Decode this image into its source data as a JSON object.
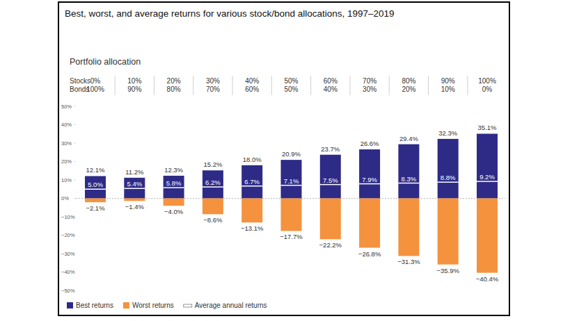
{
  "chart_data": {
    "type": "bar",
    "title": "Best, worst, and average returns for various stock/bond allocations, 1997–2019",
    "allocation": {
      "title": "Portfolio allocation",
      "row_labels": [
        "Stocks",
        "Bonds"
      ],
      "stocks": [
        "0%",
        "10%",
        "20%",
        "30%",
        "40%",
        "50%",
        "60%",
        "70%",
        "80%",
        "90%",
        "100%"
      ],
      "bonds": [
        "100%",
        "90%",
        "80%",
        "70%",
        "60%",
        "50%",
        "40%",
        "30%",
        "20%",
        "10%",
        "0%"
      ]
    },
    "series": [
      {
        "name": "Best returns",
        "color": "#2e2b87",
        "values": [
          12.1,
          11.2,
          12.3,
          15.2,
          18.0,
          20.9,
          23.7,
          26.6,
          29.4,
          32.3,
          35.1
        ],
        "value_labels": [
          "12.1%",
          "11.2%",
          "12.3%",
          "15.2%",
          "18.0%",
          "20.9%",
          "23.7%",
          "26.6%",
          "29.4%",
          "32.3%",
          "35.1%"
        ]
      },
      {
        "name": "Worst returns",
        "color": "#f5923e",
        "values": [
          -2.1,
          -1.4,
          -4.0,
          -8.6,
          -13.1,
          -17.7,
          -22.2,
          -26.8,
          -31.3,
          -35.9,
          -40.4
        ],
        "value_labels": [
          "−2.1%",
          "−1.4%",
          "−4.0%",
          "−8.6%",
          "−13.1%",
          "−17.7%",
          "−22.2%",
          "−26.8%",
          "−31.3%",
          "−35.9%",
          "−40.4%"
        ]
      },
      {
        "name": "Average annual returns",
        "color": "#ffffff",
        "marker": "dash",
        "values": [
          5.0,
          5.4,
          5.8,
          6.2,
          6.7,
          7.1,
          7.5,
          7.9,
          8.3,
          8.8,
          9.2
        ],
        "value_labels": [
          "5.0%",
          "5.4%",
          "5.8%",
          "6.2%",
          "6.7%",
          "7.1%",
          "7.5%",
          "7.9%",
          "8.3%",
          "8.8%",
          "9.2%"
        ]
      }
    ],
    "ylim": [
      -50,
      50
    ],
    "yticks": [
      {
        "value": 50,
        "label": "50%"
      },
      {
        "value": 40,
        "label": "40%"
      },
      {
        "value": 30,
        "label": "30%"
      },
      {
        "value": 20,
        "label": "20%"
      },
      {
        "value": 10,
        "label": "10%"
      },
      {
        "value": 0,
        "label": "0%"
      },
      {
        "value": -10,
        "label": "−10%"
      },
      {
        "value": -20,
        "label": "−20%"
      },
      {
        "value": -30,
        "label": "−30%"
      },
      {
        "value": -40,
        "label": "−40%"
      },
      {
        "value": -50,
        "label": "−50%"
      }
    ],
    "grid": false,
    "data_labels": true,
    "legend": "bottom"
  }
}
